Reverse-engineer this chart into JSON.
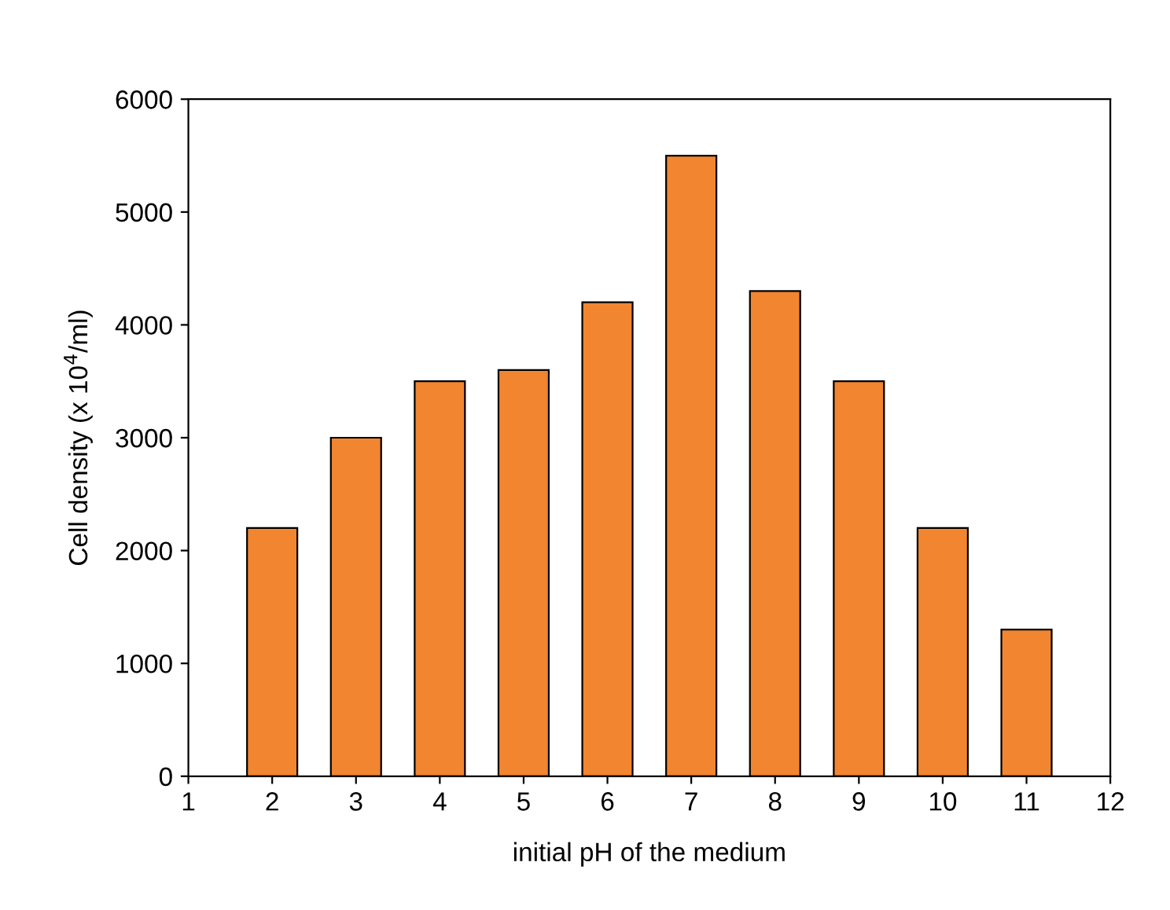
{
  "chart_data": {
    "type": "bar",
    "x": [
      2,
      3,
      4,
      5,
      6,
      7,
      8,
      9,
      10,
      11
    ],
    "values": [
      2200,
      3000,
      3500,
      3600,
      4200,
      5500,
      4300,
      3500,
      2200,
      1300
    ],
    "color": "#f28530",
    "xlabel": "initial pH of the medium",
    "ylabel": "Cell density (x 10$^{4}$/ml)",
    "xlim": [
      1,
      12
    ],
    "xticks": [
      1,
      2,
      3,
      4,
      5,
      6,
      7,
      8,
      9,
      10,
      11,
      12
    ],
    "ylim": [
      0,
      6000
    ],
    "yticks": [
      0,
      1000,
      2000,
      3000,
      4000,
      5000,
      6000
    ],
    "grid": false,
    "legend": false
  }
}
